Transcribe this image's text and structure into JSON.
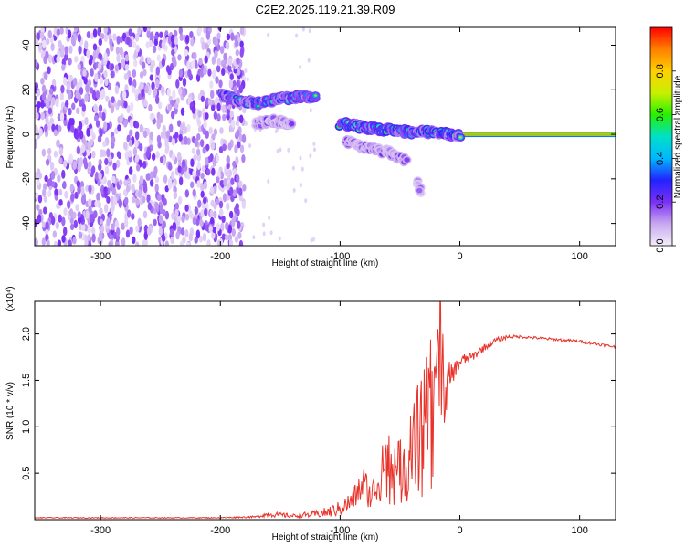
{
  "title": "C2E2.2025.119.21.39.R09",
  "chart_data": [
    {
      "type": "heatmap",
      "xlabel": "Height of straight line (km)",
      "ylabel": "Frequency (Hz)",
      "xlim": [
        -355,
        130
      ],
      "ylim": [
        -50,
        48
      ],
      "x_ticks": [
        -300,
        -200,
        -100,
        0,
        100
      ],
      "y_ticks": [
        -40,
        -20,
        0,
        20,
        40
      ],
      "colorbar": {
        "label": "Normalized spectral amplitude",
        "range": [
          0,
          1
        ],
        "ticks": [
          "0.0",
          "0.2",
          "0.4",
          "0.6",
          "0.8"
        ],
        "tick_values": [
          0.0,
          0.2,
          0.4,
          0.6,
          0.8
        ],
        "colors": [
          "#f4eefb",
          "#c8a8f0",
          "#7b2ff5",
          "#2222ff",
          "#00b8ff",
          "#00e0c8",
          "#28f000",
          "#c8f000",
          "#ffd000",
          "#ff8000",
          "#ff0000"
        ]
      },
      "noise_region_x": [
        -355,
        -180
      ],
      "tracks": [
        {
          "x": [
            -200,
            -185,
            -170,
            -150,
            -130,
            -120
          ],
          "y": [
            18,
            15,
            14,
            16,
            17,
            16
          ],
          "amplitude": 0.45
        },
        {
          "x": [
            -100,
            -80,
            -60,
            -40,
            -20,
            -10,
            0
          ],
          "y": [
            5,
            3,
            2,
            1,
            1,
            0,
            0
          ],
          "amplitude": 0.5
        },
        {
          "x": [
            -170,
            -155,
            -140
          ],
          "y": [
            5,
            6,
            5
          ],
          "amplitude": 0.2
        },
        {
          "x": [
            -95,
            -80,
            -60,
            -45
          ],
          "y": [
            -3,
            -6,
            -8,
            -12
          ],
          "amplitude": 0.2
        },
        {
          "x": [
            -35,
            -33
          ],
          "y": [
            -22,
            -25
          ],
          "amplitude": 0.15
        }
      ],
      "carrier_line": {
        "x_start": 0,
        "x_end": 130,
        "y": 0,
        "amplitude": 0.9
      }
    },
    {
      "type": "line",
      "xlabel": "Height of straight line (km)",
      "ylabel": "SNR (10 * v/v)",
      "y_multiplier": "(x10⁴)",
      "xlim": [
        -355,
        130
      ],
      "ylim": [
        0,
        2.35
      ],
      "x_ticks": [
        -300,
        -200,
        -100,
        0,
        100
      ],
      "y_ticks": [
        0.5,
        1.0,
        1.5,
        2.0
      ],
      "y_tick_labels": [
        "0.5",
        "1.0",
        "1.5",
        "2.0"
      ],
      "color": "#e8322a",
      "series": [
        {
          "x": [
            -355,
            -300,
            -250,
            -200,
            -170,
            -160,
            -150,
            -140,
            -130,
            -120,
            -110,
            -100,
            -90,
            -85,
            -80,
            -75,
            -70,
            -65,
            -60,
            -55,
            -50,
            -45,
            -40,
            -35,
            -30,
            -25,
            -20,
            -18,
            -15,
            -12,
            -10,
            -5,
            0,
            5,
            10,
            20,
            30,
            40,
            50,
            60,
            70,
            80,
            90,
            100,
            110,
            120,
            130
          ],
          "y": [
            0.02,
            0.02,
            0.02,
            0.02,
            0.03,
            0.06,
            0.05,
            0.04,
            0.05,
            0.06,
            0.08,
            0.12,
            0.2,
            0.3,
            0.4,
            0.25,
            0.35,
            0.6,
            0.5,
            0.55,
            0.5,
            0.6,
            0.65,
            0.8,
            0.9,
            1.2,
            1.3,
            1.7,
            1.6,
            1.35,
            1.5,
            1.6,
            1.7,
            1.73,
            1.75,
            1.85,
            1.93,
            1.97,
            1.97,
            1.96,
            1.95,
            1.94,
            1.93,
            1.92,
            1.9,
            1.88,
            1.86
          ],
          "spread": [
            0.005,
            0.005,
            0.005,
            0.005,
            0.01,
            0.03,
            0.03,
            0.02,
            0.03,
            0.04,
            0.06,
            0.08,
            0.12,
            0.15,
            0.2,
            0.15,
            0.2,
            0.4,
            0.35,
            0.4,
            0.35,
            0.45,
            0.5,
            0.8,
            0.7,
            0.9,
            1.0,
            1.1,
            0.6,
            0.3,
            0.2,
            0.1,
            0.08,
            0.06,
            0.05,
            0.04,
            0.03,
            0.02,
            0.015,
            0.015,
            0.015,
            0.015,
            0.015,
            0.015,
            0.015,
            0.015,
            0.015
          ]
        }
      ]
    }
  ]
}
